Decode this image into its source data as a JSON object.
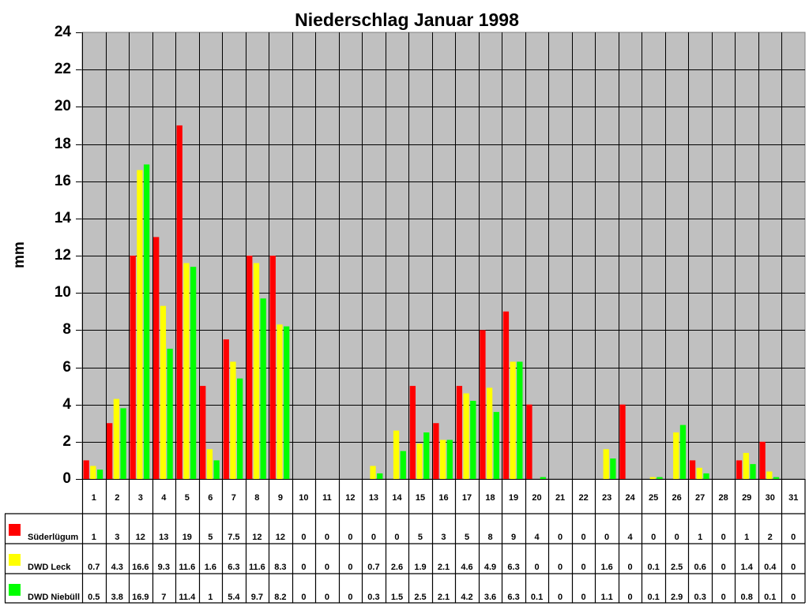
{
  "chart_data": {
    "type": "bar",
    "title": "Niederschlag Januar 1998",
    "xlabel": "",
    "ylabel": "mm",
    "ylim": [
      0,
      24
    ],
    "yticks": [
      0,
      2,
      4,
      6,
      8,
      10,
      12,
      14,
      16,
      18,
      20,
      22,
      24
    ],
    "grid": true,
    "legend_position": "table-left",
    "categories": [
      "1",
      "2",
      "3",
      "4",
      "5",
      "6",
      "7",
      "8",
      "9",
      "10",
      "11",
      "12",
      "13",
      "14",
      "15",
      "16",
      "17",
      "18",
      "19",
      "20",
      "21",
      "22",
      "23",
      "24",
      "25",
      "26",
      "27",
      "28",
      "29",
      "30",
      "31"
    ],
    "series": [
      {
        "name": "Süderlügum",
        "color": "#ff0000",
        "values": [
          1,
          3,
          12,
          13,
          19,
          5,
          7.5,
          12,
          12,
          0,
          0,
          0,
          0,
          0,
          5,
          3,
          5,
          8,
          9,
          4,
          0,
          0,
          0,
          4,
          0,
          0,
          1,
          0,
          1,
          2,
          0
        ]
      },
      {
        "name": "DWD Leck",
        "color": "#ffff00",
        "values": [
          0.7,
          4.3,
          16.6,
          9.3,
          11.6,
          1.6,
          6.3,
          11.6,
          8.3,
          0,
          0,
          0,
          0.7,
          2.6,
          1.9,
          2.1,
          4.6,
          4.9,
          6.3,
          0,
          0,
          0,
          1.6,
          0,
          0.1,
          2.5,
          0.6,
          0,
          1.4,
          0.4,
          0
        ]
      },
      {
        "name": "DWD Niebüll",
        "color": "#00ff00",
        "values": [
          0.5,
          3.8,
          16.9,
          7,
          11.4,
          1,
          5.4,
          9.7,
          8.2,
          0,
          0,
          0,
          0.3,
          1.5,
          2.5,
          2.1,
          4.2,
          3.6,
          6.3,
          0.1,
          0,
          0,
          1.1,
          0,
          0.1,
          2.9,
          0.3,
          0,
          0.8,
          0.1,
          0
        ]
      }
    ],
    "data_table": true
  },
  "colors": {
    "plot_background": "#c0c0c0",
    "grid": "#000000"
  }
}
